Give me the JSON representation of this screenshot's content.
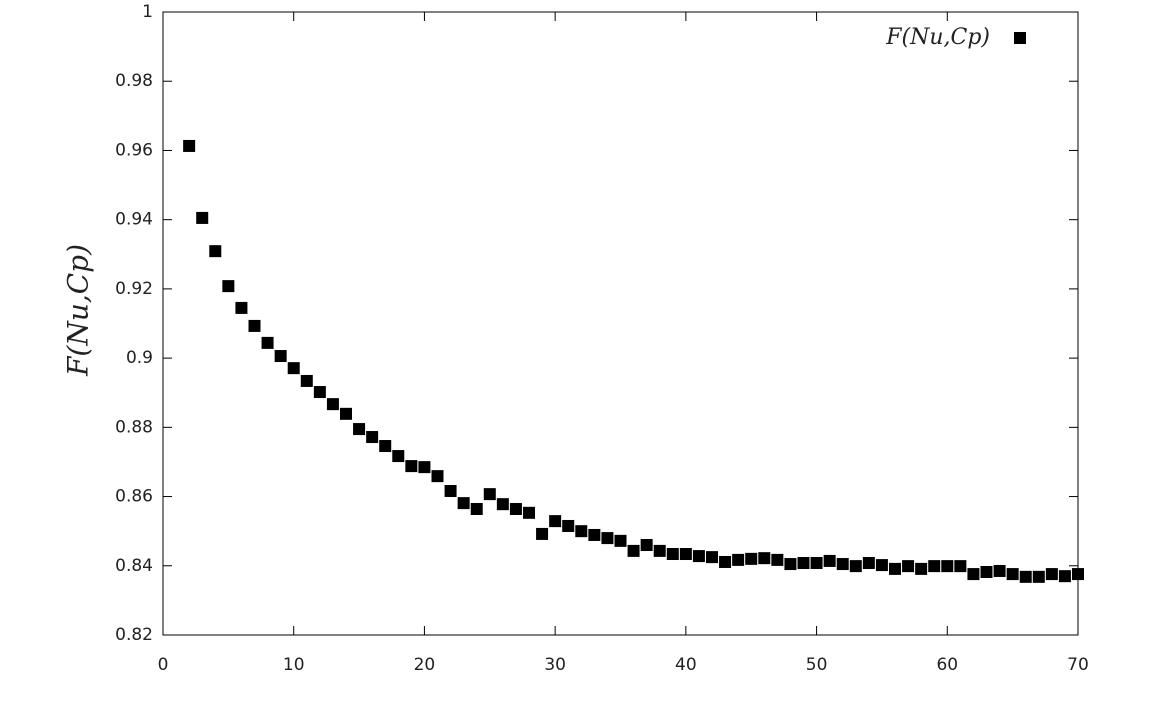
{
  "chart_data": {
    "type": "scatter",
    "ylabel": "F(Nu,Cp)",
    "series": [
      {
        "name": "F(Nu,Cp)",
        "color": "#000000",
        "x": [
          2,
          3,
          4,
          5,
          6,
          7,
          8,
          9,
          10,
          11,
          12,
          13,
          14,
          15,
          16,
          17,
          18,
          19,
          20,
          21,
          22,
          23,
          24,
          25,
          26,
          27,
          28,
          29,
          30,
          31,
          32,
          33,
          34,
          35,
          36,
          37,
          38,
          39,
          40,
          41,
          42,
          43,
          44,
          45,
          46,
          47,
          48,
          49,
          50,
          51,
          52,
          53,
          54,
          55,
          56,
          57,
          58,
          59,
          60,
          61,
          62,
          63,
          64,
          65,
          66,
          67,
          68,
          69,
          70
        ],
        "values": [
          0.9613,
          0.9405,
          0.9309,
          0.9208,
          0.9145,
          0.9093,
          0.9044,
          0.9006,
          0.8971,
          0.8934,
          0.8902,
          0.8867,
          0.8839,
          0.8795,
          0.8772,
          0.8746,
          0.8717,
          0.8688,
          0.8685,
          0.8659,
          0.8616,
          0.8581,
          0.8564,
          0.8607,
          0.8578,
          0.8564,
          0.8553,
          0.8492,
          0.8529,
          0.8515,
          0.85,
          0.8489,
          0.848,
          0.8472,
          0.8443,
          0.846,
          0.8443,
          0.8434,
          0.8434,
          0.8428,
          0.8425,
          0.8411,
          0.8417,
          0.842,
          0.8422,
          0.8417,
          0.8405,
          0.8408,
          0.8408,
          0.8414,
          0.8405,
          0.8399,
          0.8408,
          0.8402,
          0.8391,
          0.8399,
          0.8391,
          0.8399,
          0.8399,
          0.8399,
          0.8376,
          0.8382,
          0.8385,
          0.8376,
          0.8368,
          0.8368,
          0.8376,
          0.837,
          0.8376
        ]
      }
    ],
    "xlim": [
      0,
      70
    ],
    "xticks": [
      0,
      10,
      20,
      30,
      40,
      50,
      60,
      70
    ],
    "ylim": [
      0.82,
      1
    ],
    "yticks": [
      0.82,
      0.84,
      0.86,
      0.88,
      0.9,
      0.92,
      0.94,
      0.96,
      0.98,
      1
    ],
    "legend": "top-right",
    "grid": false
  }
}
